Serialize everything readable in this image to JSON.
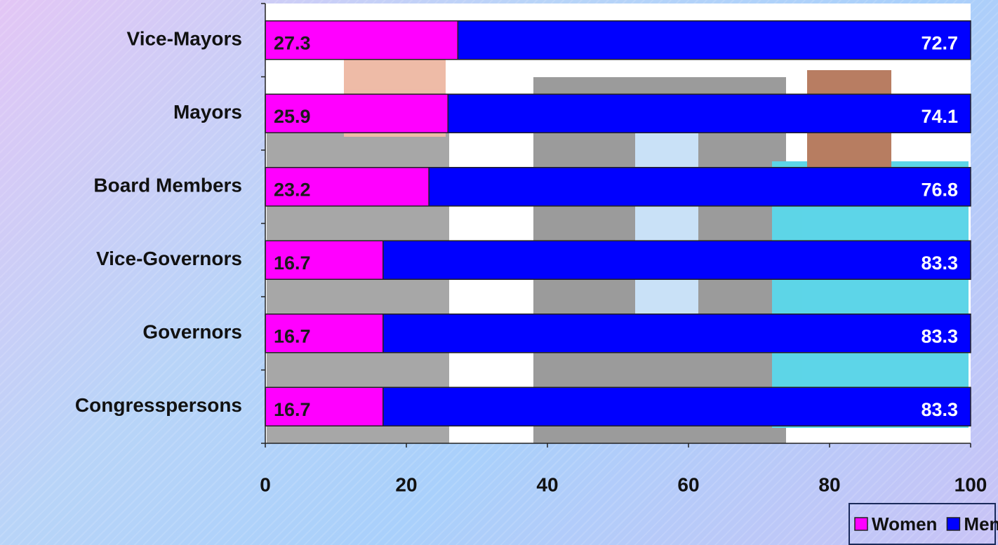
{
  "chart_data": {
    "type": "stacked-bar-horizontal",
    "categories": [
      "Vice-Mayors",
      "Mayors",
      "Board Members",
      "Vice-Governors",
      "Governors",
      "Congresspersons"
    ],
    "series": [
      {
        "name": "Women",
        "color": "#ff00ff",
        "values": [
          27.3,
          25.9,
          23.2,
          16.7,
          16.7,
          16.7
        ]
      },
      {
        "name": "Men",
        "color": "#0000ff",
        "values": [
          72.7,
          74.1,
          76.8,
          83.3,
          83.3,
          83.3
        ]
      }
    ],
    "xlim": [
      0,
      100
    ],
    "xticks": [
      0,
      20,
      40,
      60,
      80,
      100
    ]
  }
}
